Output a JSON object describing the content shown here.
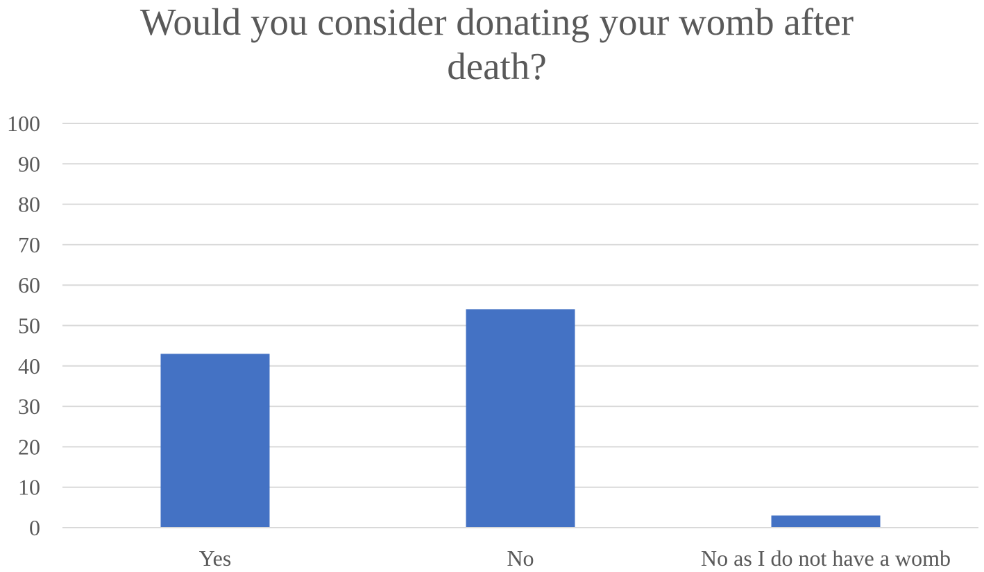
{
  "chart_data": {
    "type": "bar",
    "title_lines": [
      "Would you consider donating your womb after",
      "death?"
    ],
    "categories": [
      "Yes",
      "No",
      "No as I do not have a womb"
    ],
    "values": [
      43,
      54,
      3
    ],
    "ylim": [
      0,
      100
    ],
    "yticks": [
      "0",
      "10",
      "20",
      "30",
      "40",
      "50",
      "60",
      "70",
      "80",
      "90",
      "100"
    ],
    "xlabel": "",
    "ylabel": "",
    "grid": true,
    "legend": "none",
    "bar_color": "#4472c4"
  }
}
